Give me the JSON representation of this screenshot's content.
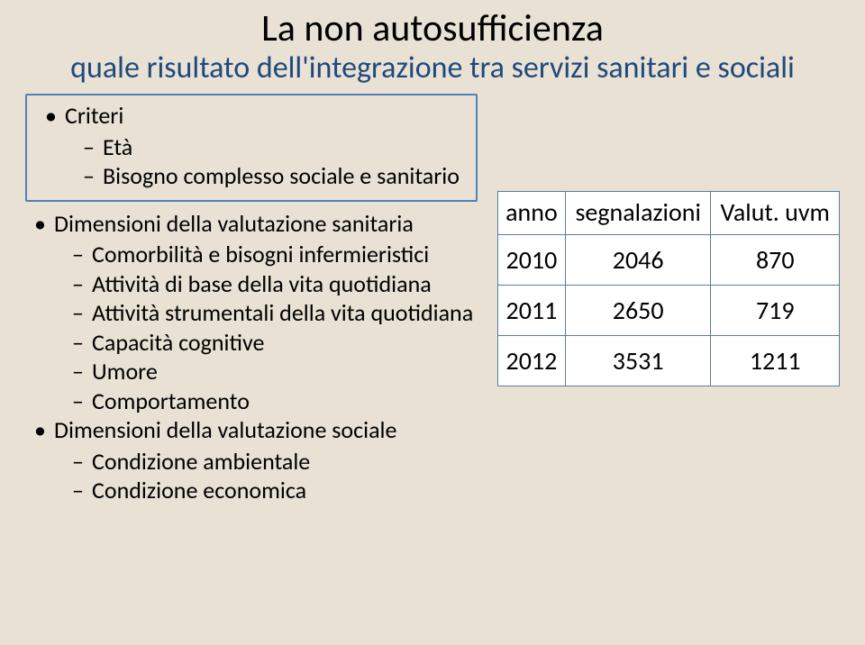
{
  "title": {
    "line1": "La non autosufficienza",
    "line2": "quale risultato dell'integrazione tra servizi sanitari e sociali"
  },
  "bullets": {
    "criteri": {
      "label": "Criteri",
      "items": [
        "Età",
        "Bisogno complesso sociale e sanitario"
      ]
    },
    "dim_sanitaria": {
      "label": "Dimensioni della valutazione sanitaria",
      "items": [
        "Comorbilità e bisogni infermieristici",
        "Attività di base della vita quotidiana",
        "Attività strumentali della vita quotidiana",
        "Capacità cognitive",
        "Umore",
        "Comportamento"
      ]
    },
    "dim_sociale": {
      "label": "Dimensioni della valutazione sociale",
      "items": [
        "Condizione ambientale",
        "Condizione economica"
      ]
    }
  },
  "table": {
    "headers": {
      "c0": "anno",
      "c1": "segnalazioni",
      "c2": "Valut. uvm"
    },
    "rows": [
      {
        "c0": "2010",
        "c1": "2046",
        "c2": "870"
      },
      {
        "c0": "2011",
        "c1": "2650",
        "c2": "719"
      },
      {
        "c0": "2012",
        "c1": "3531",
        "c2": "1211"
      }
    ],
    "style": {
      "border_color": "#5b7ca3",
      "cell_bg": "#ffffff",
      "fontsize": 28
    }
  },
  "box_border_color": "#4f81bd",
  "page_bg": "#e8e1d4"
}
